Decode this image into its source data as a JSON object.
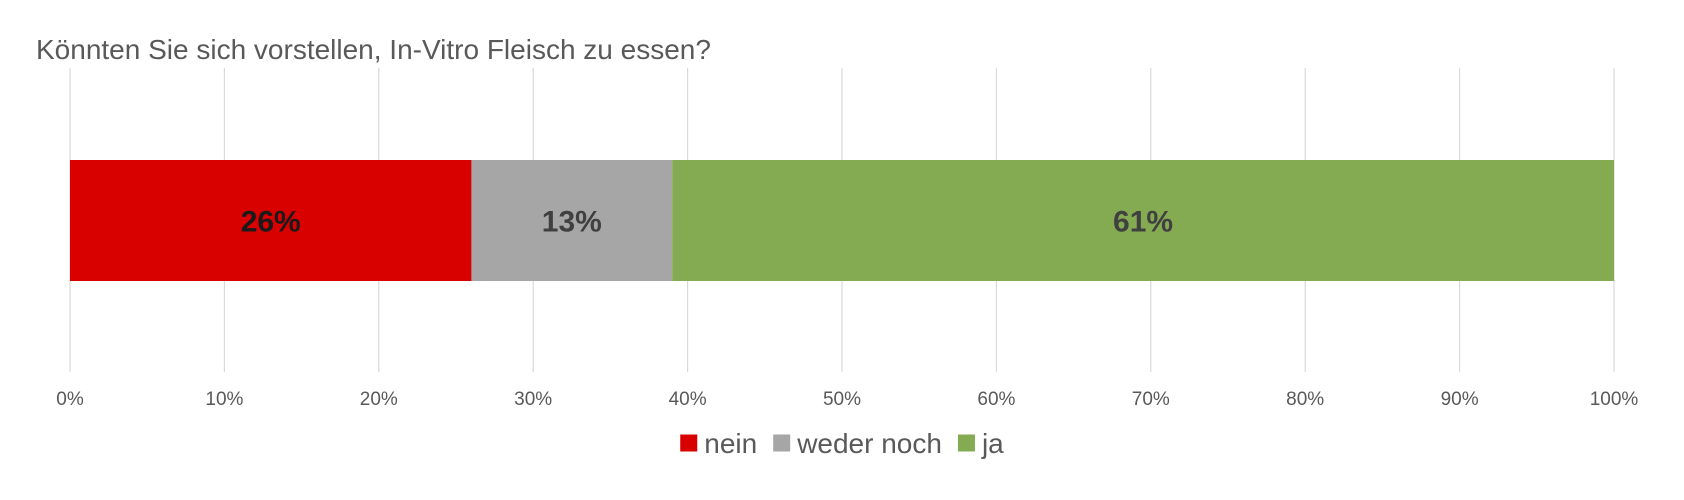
{
  "chart_data": {
    "type": "bar",
    "orientation": "horizontal",
    "stacked": "100%",
    "title": "Könnten Sie sich vorstellen, In-Vitro Fleisch zu essen?",
    "categories": [
      ""
    ],
    "series": [
      {
        "name": "nein",
        "values": [
          26
        ],
        "label": "26%",
        "color": "#d90000",
        "label_color": "#1a1a1a"
      },
      {
        "name": "weder noch",
        "values": [
          13
        ],
        "label": "13%",
        "color": "#a6a6a6",
        "label_color": "#404040"
      },
      {
        "name": "ja",
        "values": [
          61
        ],
        "label": "61%",
        "color": "#84ab52",
        "label_color": "#404040"
      }
    ],
    "xlim": [
      0,
      100
    ],
    "x_ticks": [
      0,
      10,
      20,
      30,
      40,
      50,
      60,
      70,
      80,
      90,
      100
    ],
    "x_tick_labels": [
      "0%",
      "10%",
      "20%",
      "30%",
      "40%",
      "50%",
      "60%",
      "70%",
      "80%",
      "90%",
      "100%"
    ],
    "grid": "vertical",
    "legend_position": "bottom"
  }
}
